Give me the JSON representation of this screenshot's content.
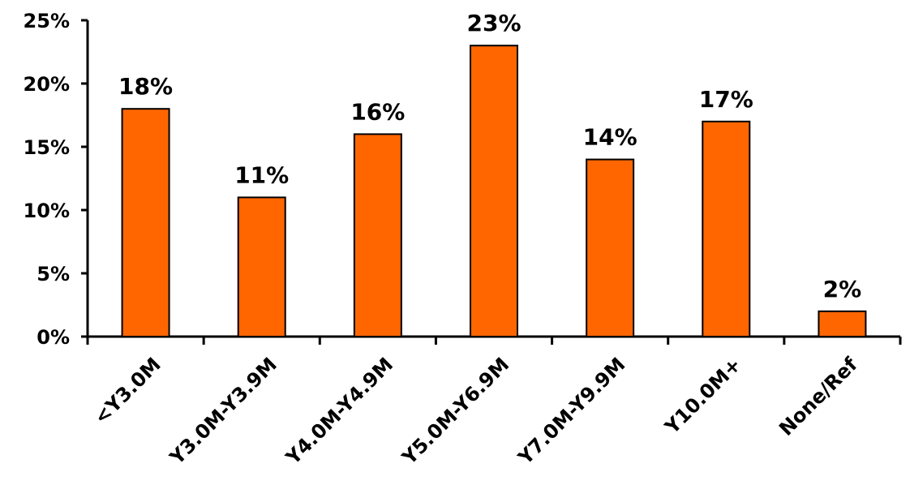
{
  "colors": {
    "bar_fill": "#ff6600",
    "bar_stroke": "#000000",
    "axis": "#000000"
  },
  "chart_data": {
    "type": "bar",
    "categories": [
      "<Y3.0M",
      "Y3.0M-Y3.9M",
      "Y4.0M-Y4.9M",
      "Y5.0M-Y6.9M",
      "Y7.0M-Y9.9M",
      "Y10.0M+",
      "None/Ref"
    ],
    "values": [
      18,
      11,
      16,
      23,
      14,
      17,
      2
    ],
    "data_labels": [
      "18%",
      "11%",
      "16%",
      "23%",
      "14%",
      "17%",
      "2%"
    ],
    "yticks": [
      "0%",
      "5%",
      "10%",
      "15%",
      "20%",
      "25%"
    ],
    "ylim": [
      0,
      25
    ],
    "title": "",
    "xlabel": "",
    "ylabel": "",
    "grid": false,
    "legend": "none"
  }
}
